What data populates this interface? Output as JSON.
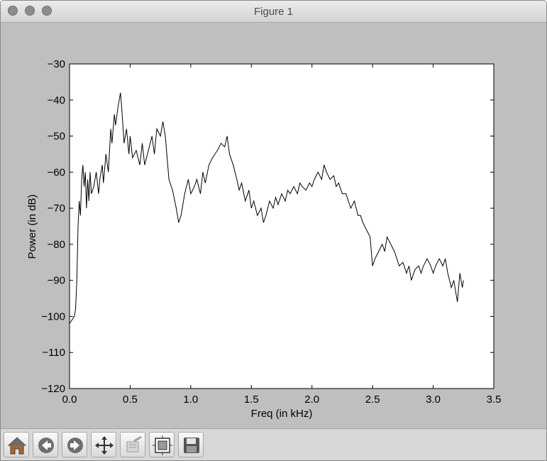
{
  "window": {
    "title": "Figure 1"
  },
  "toolbar": {
    "buttons": [
      {
        "name": "home-button",
        "icon": "home-icon"
      },
      {
        "name": "back-button",
        "icon": "back-arrow-icon"
      },
      {
        "name": "forward-button",
        "icon": "forward-arrow-icon"
      },
      {
        "name": "pan-button",
        "icon": "pan-arrows-icon"
      },
      {
        "name": "zoom-button",
        "icon": "zoom-rect-icon"
      },
      {
        "name": "subplots-button",
        "icon": "subplots-icon"
      },
      {
        "name": "save-button",
        "icon": "floppy-disk-icon"
      }
    ]
  },
  "chart_data": {
    "type": "line",
    "xlabel": "Freq (in kHz)",
    "ylabel": "Power (in dB)",
    "xlim": [
      0.0,
      3.5
    ],
    "ylim": [
      -120,
      -30
    ],
    "xticks": [
      "0.0",
      "0.5",
      "1.0",
      "1.5",
      "2.0",
      "2.5",
      "3.0",
      "3.5"
    ],
    "yticks": [
      "−30",
      "−40",
      "−50",
      "−60",
      "−70",
      "−80",
      "−90",
      "−100",
      "−110",
      "−120"
    ],
    "grid": false,
    "line_color": "#000000",
    "series": [
      {
        "points": [
          [
            0.0,
            -102
          ],
          [
            0.02,
            -101
          ],
          [
            0.04,
            -100
          ],
          [
            0.05,
            -98
          ],
          [
            0.06,
            -90
          ],
          [
            0.07,
            -75
          ],
          [
            0.08,
            -68
          ],
          [
            0.09,
            -72
          ],
          [
            0.1,
            -62
          ],
          [
            0.11,
            -58
          ],
          [
            0.12,
            -64
          ],
          [
            0.13,
            -60
          ],
          [
            0.14,
            -70
          ],
          [
            0.15,
            -62
          ],
          [
            0.16,
            -68
          ],
          [
            0.17,
            -60
          ],
          [
            0.18,
            -66
          ],
          [
            0.2,
            -64
          ],
          [
            0.22,
            -60
          ],
          [
            0.24,
            -66
          ],
          [
            0.25,
            -62
          ],
          [
            0.27,
            -58
          ],
          [
            0.28,
            -63
          ],
          [
            0.3,
            -55
          ],
          [
            0.32,
            -60
          ],
          [
            0.34,
            -48
          ],
          [
            0.35,
            -52
          ],
          [
            0.37,
            -44
          ],
          [
            0.38,
            -47
          ],
          [
            0.4,
            -42
          ],
          [
            0.42,
            -38
          ],
          [
            0.43,
            -42
          ],
          [
            0.45,
            -52
          ],
          [
            0.47,
            -48
          ],
          [
            0.49,
            -55
          ],
          [
            0.5,
            -50
          ],
          [
            0.52,
            -56
          ],
          [
            0.55,
            -54
          ],
          [
            0.58,
            -58
          ],
          [
            0.6,
            -52
          ],
          [
            0.62,
            -58
          ],
          [
            0.65,
            -54
          ],
          [
            0.68,
            -50
          ],
          [
            0.7,
            -55
          ],
          [
            0.72,
            -48
          ],
          [
            0.75,
            -50
          ],
          [
            0.77,
            -46
          ],
          [
            0.79,
            -50
          ],
          [
            0.8,
            -54
          ],
          [
            0.82,
            -62
          ],
          [
            0.85,
            -65
          ],
          [
            0.88,
            -70
          ],
          [
            0.9,
            -74
          ],
          [
            0.92,
            -72
          ],
          [
            0.95,
            -66
          ],
          [
            0.98,
            -62
          ],
          [
            1.0,
            -66
          ],
          [
            1.03,
            -64
          ],
          [
            1.05,
            -62
          ],
          [
            1.08,
            -66
          ],
          [
            1.1,
            -60
          ],
          [
            1.12,
            -63
          ],
          [
            1.15,
            -58
          ],
          [
            1.18,
            -56
          ],
          [
            1.2,
            -55
          ],
          [
            1.22,
            -54
          ],
          [
            1.25,
            -52
          ],
          [
            1.28,
            -53
          ],
          [
            1.3,
            -50
          ],
          [
            1.32,
            -55
          ],
          [
            1.35,
            -58
          ],
          [
            1.38,
            -62
          ],
          [
            1.4,
            -65
          ],
          [
            1.42,
            -63
          ],
          [
            1.45,
            -68
          ],
          [
            1.48,
            -65
          ],
          [
            1.5,
            -70
          ],
          [
            1.52,
            -68
          ],
          [
            1.55,
            -72
          ],
          [
            1.58,
            -70
          ],
          [
            1.6,
            -74
          ],
          [
            1.62,
            -72
          ],
          [
            1.65,
            -68
          ],
          [
            1.68,
            -70
          ],
          [
            1.7,
            -67
          ],
          [
            1.72,
            -69
          ],
          [
            1.75,
            -66
          ],
          [
            1.78,
            -68
          ],
          [
            1.8,
            -65
          ],
          [
            1.82,
            -66
          ],
          [
            1.85,
            -64
          ],
          [
            1.88,
            -66
          ],
          [
            1.9,
            -63
          ],
          [
            1.92,
            -64
          ],
          [
            1.95,
            -65
          ],
          [
            1.98,
            -63
          ],
          [
            2.0,
            -64
          ],
          [
            2.02,
            -62
          ],
          [
            2.05,
            -60
          ],
          [
            2.08,
            -62
          ],
          [
            2.1,
            -58
          ],
          [
            2.12,
            -60
          ],
          [
            2.15,
            -62
          ],
          [
            2.18,
            -61
          ],
          [
            2.2,
            -64
          ],
          [
            2.22,
            -63
          ],
          [
            2.25,
            -66
          ],
          [
            2.28,
            -66
          ],
          [
            2.3,
            -68
          ],
          [
            2.32,
            -70
          ],
          [
            2.35,
            -68
          ],
          [
            2.38,
            -72
          ],
          [
            2.4,
            -72
          ],
          [
            2.42,
            -74
          ],
          [
            2.45,
            -76
          ],
          [
            2.48,
            -78
          ],
          [
            2.5,
            -86
          ],
          [
            2.52,
            -84
          ],
          [
            2.55,
            -82
          ],
          [
            2.58,
            -80
          ],
          [
            2.6,
            -82
          ],
          [
            2.62,
            -78
          ],
          [
            2.65,
            -80
          ],
          [
            2.68,
            -82
          ],
          [
            2.7,
            -84
          ],
          [
            2.72,
            -86
          ],
          [
            2.75,
            -85
          ],
          [
            2.78,
            -88
          ],
          [
            2.8,
            -86
          ],
          [
            2.82,
            -90
          ],
          [
            2.85,
            -87
          ],
          [
            2.88,
            -86
          ],
          [
            2.9,
            -88
          ],
          [
            2.92,
            -86
          ],
          [
            2.95,
            -84
          ],
          [
            2.98,
            -86
          ],
          [
            3.0,
            -88
          ],
          [
            3.02,
            -86
          ],
          [
            3.05,
            -84
          ],
          [
            3.08,
            -86
          ],
          [
            3.1,
            -84
          ],
          [
            3.12,
            -88
          ],
          [
            3.15,
            -92
          ],
          [
            3.17,
            -90
          ],
          [
            3.19,
            -94
          ],
          [
            3.2,
            -96
          ],
          [
            3.22,
            -88
          ],
          [
            3.24,
            -92
          ],
          [
            3.25,
            -90
          ]
        ]
      }
    ]
  }
}
